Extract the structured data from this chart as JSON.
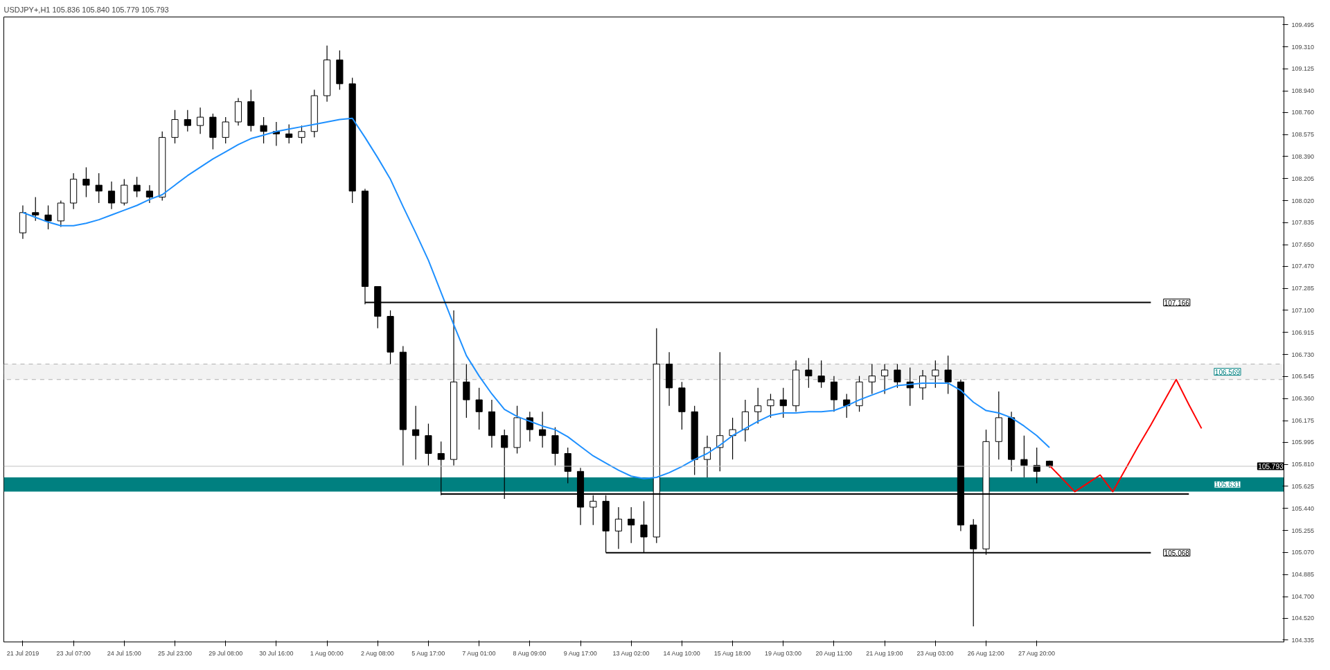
{
  "chart_data": {
    "type": "candlestick",
    "title": "USDJPY+,H1  105.836 105.840 105.779 105.793",
    "color": "#000000",
    "categories": [
      "21 Jul 2019",
      null,
      null,
      null,
      "23 Jul 07:00",
      null,
      null,
      null,
      "24 Jul 15:00",
      null,
      null,
      null,
      "25 Jul 23:00",
      null,
      null,
      null,
      "29 Jul 08:00",
      null,
      null,
      null,
      "30 Jul 16:00",
      null,
      null,
      null,
      "1 Aug 00:00",
      null,
      null,
      null,
      "2 Aug 08:00",
      null,
      null,
      null,
      "5 Aug 17:00",
      null,
      null,
      null,
      "7 Aug 01:00",
      null,
      null,
      null,
      "8 Aug 09:00",
      null,
      null,
      null,
      "9 Aug 17:00",
      null,
      null,
      null,
      "13 Aug 02:00",
      null,
      null,
      null,
      "14 Aug 10:00",
      null,
      null,
      null,
      "15 Aug 18:00",
      null,
      null,
      null,
      "19 Aug 03:00",
      null,
      null,
      null,
      "20 Aug 11:00",
      null,
      null,
      null,
      "21 Aug 19:00",
      null,
      null,
      null,
      "23 Aug 03:00",
      null,
      null,
      null,
      "26 Aug 12:00",
      null,
      null,
      null,
      "27 Aug 20:00",
      null,
      null,
      null,
      null,
      null,
      null,
      null,
      null,
      null,
      null,
      null,
      null,
      null,
      null,
      null,
      null,
      null,
      null,
      null
    ],
    "ohlc": [
      [
        107.75,
        107.98,
        107.7,
        107.92
      ],
      [
        107.92,
        108.05,
        107.85,
        107.9
      ],
      [
        107.9,
        107.98,
        107.78,
        107.85
      ],
      [
        107.85,
        108.02,
        107.8,
        108.0
      ],
      [
        108.0,
        108.25,
        107.95,
        108.2
      ],
      [
        108.2,
        108.3,
        108.05,
        108.15
      ],
      [
        108.15,
        108.25,
        108.0,
        108.1
      ],
      [
        108.1,
        108.18,
        107.95,
        108.0
      ],
      [
        108.0,
        108.2,
        107.98,
        108.15
      ],
      [
        108.15,
        108.22,
        108.05,
        108.1
      ],
      [
        108.1,
        108.15,
        108.0,
        108.05
      ],
      [
        108.05,
        108.6,
        108.02,
        108.55
      ],
      [
        108.55,
        108.78,
        108.5,
        108.7
      ],
      [
        108.7,
        108.78,
        108.6,
        108.65
      ],
      [
        108.65,
        108.8,
        108.58,
        108.72
      ],
      [
        108.72,
        108.75,
        108.45,
        108.55
      ],
      [
        108.55,
        108.72,
        108.5,
        108.68
      ],
      [
        108.68,
        108.88,
        108.65,
        108.85
      ],
      [
        108.85,
        108.95,
        108.6,
        108.65
      ],
      [
        108.65,
        108.72,
        108.5,
        108.6
      ],
      [
        108.6,
        108.68,
        108.48,
        108.58
      ],
      [
        108.58,
        108.66,
        108.5,
        108.55
      ],
      [
        108.55,
        108.65,
        108.5,
        108.6
      ],
      [
        108.6,
        108.95,
        108.55,
        108.9
      ],
      [
        108.9,
        109.32,
        108.85,
        109.2
      ],
      [
        109.2,
        109.28,
        108.95,
        109.0
      ],
      [
        109.0,
        109.05,
        108.0,
        108.1
      ],
      [
        108.1,
        108.12,
        107.15,
        107.3
      ],
      [
        107.3,
        107.3,
        106.95,
        107.05
      ],
      [
        107.05,
        107.1,
        106.65,
        106.75
      ],
      [
        106.75,
        106.8,
        105.8,
        106.1
      ],
      [
        106.1,
        106.3,
        105.85,
        106.05
      ],
      [
        106.05,
        106.15,
        105.8,
        105.9
      ],
      [
        105.9,
        106.0,
        105.55,
        105.85
      ],
      [
        105.85,
        107.1,
        105.8,
        106.5
      ],
      [
        106.5,
        106.65,
        106.2,
        106.35
      ],
      [
        106.35,
        106.45,
        106.1,
        106.25
      ],
      [
        106.25,
        106.35,
        105.95,
        106.05
      ],
      [
        106.05,
        106.1,
        105.52,
        105.95
      ],
      [
        105.95,
        106.3,
        105.9,
        106.2
      ],
      [
        106.2,
        106.25,
        106.0,
        106.1
      ],
      [
        106.1,
        106.25,
        105.95,
        106.05
      ],
      [
        106.05,
        106.12,
        105.8,
        105.9
      ],
      [
        105.9,
        105.95,
        105.65,
        105.75
      ],
      [
        105.75,
        105.78,
        105.3,
        105.45
      ],
      [
        105.45,
        105.55,
        105.3,
        105.5
      ],
      [
        105.5,
        105.55,
        105.07,
        105.25
      ],
      [
        105.25,
        105.45,
        105.1,
        105.35
      ],
      [
        105.35,
        105.45,
        105.15,
        105.3
      ],
      [
        105.3,
        105.5,
        105.07,
        105.2
      ],
      [
        105.2,
        106.95,
        105.15,
        106.65
      ],
      [
        106.65,
        106.75,
        106.3,
        106.45
      ],
      [
        106.45,
        106.5,
        106.1,
        106.25
      ],
      [
        106.25,
        106.3,
        105.72,
        105.85
      ],
      [
        105.85,
        106.05,
        105.7,
        105.95
      ],
      [
        105.95,
        106.75,
        105.75,
        106.05
      ],
      [
        106.05,
        106.2,
        105.85,
        106.1
      ],
      [
        106.1,
        106.35,
        106.0,
        106.25
      ],
      [
        106.25,
        106.45,
        106.15,
        106.3
      ],
      [
        106.3,
        106.4,
        106.2,
        106.35
      ],
      [
        106.35,
        106.45,
        106.2,
        106.3
      ],
      [
        106.3,
        106.68,
        106.25,
        106.6
      ],
      [
        106.6,
        106.7,
        106.45,
        106.55
      ],
      [
        106.55,
        106.68,
        106.45,
        106.5
      ],
      [
        106.5,
        106.55,
        106.25,
        106.35
      ],
      [
        106.35,
        106.4,
        106.2,
        106.3
      ],
      [
        106.3,
        106.55,
        106.25,
        106.5
      ],
      [
        106.5,
        106.65,
        106.4,
        106.55
      ],
      [
        106.55,
        106.65,
        106.4,
        106.6
      ],
      [
        106.6,
        106.65,
        106.45,
        106.5
      ],
      [
        106.5,
        106.62,
        106.3,
        106.45
      ],
      [
        106.45,
        106.6,
        106.35,
        106.55
      ],
      [
        106.55,
        106.68,
        106.45,
        106.6
      ],
      [
        106.6,
        106.72,
        106.4,
        106.5
      ],
      [
        106.5,
        106.52,
        105.25,
        105.3
      ],
      [
        105.3,
        105.35,
        104.45,
        105.1
      ],
      [
        105.1,
        106.1,
        105.05,
        106.0
      ],
      [
        106.0,
        106.42,
        105.85,
        106.2
      ],
      [
        106.2,
        106.25,
        105.75,
        105.85
      ],
      [
        105.85,
        106.05,
        105.7,
        105.8
      ],
      [
        105.8,
        105.95,
        105.65,
        105.75
      ],
      [
        105.836,
        105.84,
        105.779,
        105.793
      ],
      null,
      null,
      null,
      null,
      null,
      null,
      null,
      null,
      null,
      null,
      null,
      null,
      null,
      null,
      null,
      null,
      null,
      null
    ],
    "series": [
      {
        "type": "line",
        "color": "#1e90ff",
        "values": [
          107.92,
          107.88,
          107.84,
          107.81,
          107.81,
          107.83,
          107.86,
          107.9,
          107.94,
          107.98,
          108.03,
          108.07,
          108.15,
          108.23,
          108.3,
          108.37,
          108.43,
          108.49,
          108.54,
          108.57,
          108.6,
          108.62,
          108.64,
          108.66,
          108.68,
          108.7,
          108.71,
          108.55,
          108.38,
          108.2,
          107.97,
          107.75,
          107.52,
          107.25,
          106.98,
          106.72,
          106.55,
          106.4,
          106.27,
          106.21,
          106.17,
          106.13,
          106.1,
          106.04,
          105.96,
          105.88,
          105.82,
          105.76,
          105.71,
          105.69,
          105.7,
          105.74,
          105.79,
          105.85,
          105.9,
          105.97,
          106.05,
          106.11,
          106.17,
          106.22,
          106.24,
          106.24,
          106.25,
          106.25,
          106.26,
          106.3,
          106.35,
          106.39,
          106.43,
          106.47,
          106.48,
          106.49,
          106.49,
          106.49,
          106.43,
          106.33,
          106.26,
          106.24,
          106.2,
          106.13,
          106.05,
          105.95,
          null,
          null,
          null,
          null,
          null,
          null,
          null,
          null,
          null,
          null,
          null,
          null,
          null,
          null,
          null,
          null,
          null,
          null
        ]
      },
      {
        "type": "line",
        "color": "#000000",
        "name": "107.166",
        "values": [
          null,
          null,
          null,
          null,
          null,
          null,
          null,
          null,
          null,
          null,
          null,
          null,
          null,
          null,
          null,
          null,
          null,
          null,
          null,
          null,
          null,
          null,
          null,
          null,
          null,
          null,
          null,
          107.166,
          107.166,
          107.166,
          107.166,
          107.166,
          107.166,
          107.166,
          107.166,
          107.166,
          107.166,
          107.166,
          107.166,
          107.166,
          107.166,
          107.166,
          107.166,
          107.166,
          107.166,
          107.166,
          107.166,
          107.166,
          107.166,
          107.166,
          107.166,
          107.166,
          107.166,
          107.166,
          107.166,
          107.166,
          107.166,
          107.166,
          107.166,
          107.166,
          107.166,
          107.166,
          107.166,
          107.166,
          107.166,
          107.166,
          107.166,
          107.166,
          107.166,
          107.166,
          107.166,
          107.166,
          107.166,
          107.166,
          107.166,
          107.166,
          107.166,
          107.166,
          107.166,
          107.166,
          107.166,
          107.166,
          107.166,
          107.166,
          107.166,
          107.166,
          107.166,
          107.166,
          107.166,
          107.166,
          null,
          null,
          null,
          null,
          null,
          null,
          null,
          null,
          null,
          null
        ]
      },
      {
        "type": "line",
        "color": "#000000",
        "name": "105.068",
        "values": [
          null,
          null,
          null,
          null,
          null,
          null,
          null,
          null,
          null,
          null,
          null,
          null,
          null,
          null,
          null,
          null,
          null,
          null,
          null,
          null,
          null,
          null,
          null,
          null,
          null,
          null,
          null,
          null,
          null,
          null,
          null,
          null,
          null,
          null,
          null,
          null,
          null,
          null,
          null,
          null,
          null,
          null,
          null,
          null,
          null,
          null,
          105.068,
          105.068,
          105.068,
          105.068,
          105.068,
          105.068,
          105.068,
          105.068,
          105.068,
          105.068,
          105.068,
          105.068,
          105.068,
          105.068,
          105.068,
          105.068,
          105.068,
          105.068,
          105.068,
          105.068,
          105.068,
          105.068,
          105.068,
          105.068,
          105.068,
          105.068,
          105.068,
          105.068,
          105.068,
          105.068,
          105.068,
          105.068,
          105.068,
          105.068,
          105.068,
          105.068,
          105.068,
          105.068,
          105.068,
          105.068,
          105.068,
          105.068,
          105.068,
          105.068,
          null,
          null,
          null,
          null,
          null,
          null,
          null,
          null,
          null,
          null
        ]
      },
      {
        "type": "line",
        "color": "#000000",
        "values": [
          null,
          null,
          null,
          null,
          null,
          null,
          null,
          null,
          null,
          null,
          null,
          null,
          null,
          null,
          null,
          null,
          null,
          null,
          null,
          null,
          null,
          null,
          null,
          null,
          null,
          null,
          null,
          null,
          null,
          null,
          null,
          null,
          null,
          105.56,
          105.56,
          105.56,
          105.56,
          105.56,
          105.56,
          105.56,
          105.56,
          105.56,
          105.56,
          105.56,
          105.56,
          105.56,
          105.56,
          105.56,
          105.56,
          105.56,
          105.56,
          105.56,
          105.56,
          105.56,
          105.56,
          105.56,
          105.56,
          105.56,
          105.56,
          105.56,
          105.56,
          105.56,
          105.56,
          105.56,
          105.56,
          105.56,
          105.56,
          105.56,
          105.56,
          105.56,
          105.56,
          105.56,
          105.56,
          105.56,
          105.56,
          105.56,
          105.56,
          105.56,
          105.56,
          105.56,
          105.56,
          105.56,
          105.56,
          105.56,
          105.56,
          105.56,
          105.56,
          105.56,
          105.56,
          105.56,
          105.56,
          105.56,
          105.56,
          null,
          null,
          null,
          null,
          null,
          null,
          null
        ]
      },
      {
        "type": "line",
        "color": "#ff0000",
        "values": [
          null,
          null,
          null,
          null,
          null,
          null,
          null,
          null,
          null,
          null,
          null,
          null,
          null,
          null,
          null,
          null,
          null,
          null,
          null,
          null,
          null,
          null,
          null,
          null,
          null,
          null,
          null,
          null,
          null,
          null,
          null,
          null,
          null,
          null,
          null,
          null,
          null,
          null,
          null,
          null,
          null,
          null,
          null,
          null,
          null,
          null,
          null,
          null,
          null,
          null,
          null,
          null,
          null,
          null,
          null,
          null,
          null,
          null,
          null,
          null,
          null,
          null,
          null,
          null,
          null,
          null,
          null,
          null,
          null,
          null,
          null,
          null,
          null,
          null,
          null,
          null,
          null,
          null,
          null,
          null,
          null,
          105.8,
          105.69,
          105.58,
          105.65,
          105.72,
          105.58,
          105.77,
          105.96,
          106.14,
          106.33,
          106.52,
          106.31,
          106.11,
          null,
          null,
          null,
          null,
          null,
          null
        ]
      }
    ],
    "bands": [
      {
        "axis": "y",
        "from": 105.58,
        "to": 105.7,
        "label": "105.631",
        "color": "#008080"
      },
      {
        "axis": "y",
        "from": 106.52,
        "to": 106.65,
        "label": "106.569",
        "color": "#f2f2f2"
      }
    ],
    "ref_lines": [
      {
        "axis": "y",
        "value": 105.793,
        "label": "105.793",
        "color": "#c0c0c0"
      }
    ],
    "ylim": [
      104.32,
      109.56
    ],
    "yticks": [
      104.335,
      {
        "value": 104.52,
        "label": "104.520"
      },
      {
        "value": 104.7,
        "label": "104.700"
      },
      104.885,
      {
        "value": 105.07,
        "label": "105.070"
      },
      105.255,
      {
        "value": 105.44,
        "label": "105.440"
      },
      105.625,
      {
        "value": 105.81,
        "label": "105.810"
      },
      105.995,
      106.175,
      {
        "value": 106.36,
        "label": "106.360"
      },
      106.545,
      {
        "value": 106.73,
        "label": "106.730"
      },
      106.915,
      {
        "value": 107.1,
        "label": "107.100"
      },
      107.285,
      {
        "value": 107.47,
        "label": "107.470"
      },
      {
        "value": 107.65,
        "label": "107.650"
      },
      107.835,
      {
        "value": 108.02,
        "label": "108.020"
      },
      108.205,
      {
        "value": 108.39,
        "label": "108.390"
      },
      108.575,
      {
        "value": 108.76,
        "label": "108.760"
      },
      {
        "value": 108.94,
        "label": "108.940"
      },
      109.125,
      {
        "value": 109.31,
        "label": "109.310"
      },
      109.495
    ]
  }
}
